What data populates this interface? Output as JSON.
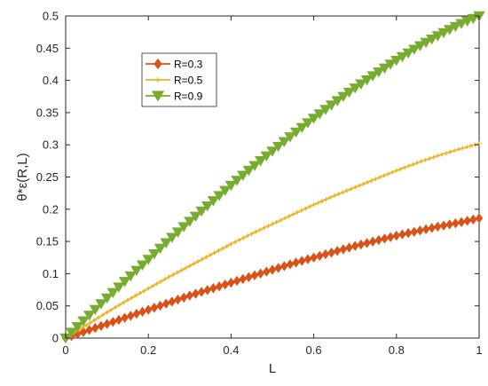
{
  "chart_data": {
    "type": "line",
    "xlabel": "L",
    "ylabel": "θ*ε(R,L)",
    "xlim": [
      0,
      1
    ],
    "ylim": [
      0,
      0.5
    ],
    "xticks": [
      "0",
      "0.2",
      "0.4",
      "0.6",
      "0.8",
      "1"
    ],
    "yticks": [
      "0",
      "0.05",
      "0.1",
      "0.15",
      "0.2",
      "0.25",
      "0.3",
      "0.35",
      "0.4",
      "0.45",
      "0.5"
    ],
    "grid": false,
    "legend_position": "top-left",
    "x": [
      0,
      0.05,
      0.1,
      0.15,
      0.2,
      0.25,
      0.3,
      0.35,
      0.4,
      0.45,
      0.5,
      0.55,
      0.6,
      0.65,
      0.7,
      0.75,
      0.8,
      0.85,
      0.9,
      0.95,
      1.0
    ],
    "series": [
      {
        "name": "R=0.3",
        "color": "#D95319",
        "marker": "diamond",
        "values": [
          0,
          0.011,
          0.022,
          0.033,
          0.044,
          0.055,
          0.066,
          0.076,
          0.086,
          0.096,
          0.106,
          0.116,
          0.125,
          0.134,
          0.143,
          0.151,
          0.159,
          0.166,
          0.173,
          0.179,
          0.186
        ]
      },
      {
        "name": "R=0.5",
        "color": "#EDB120",
        "marker": "plus",
        "values": [
          0,
          0.02,
          0.04,
          0.059,
          0.077,
          0.095,
          0.112,
          0.129,
          0.146,
          0.162,
          0.177,
          0.192,
          0.207,
          0.221,
          0.234,
          0.247,
          0.26,
          0.272,
          0.283,
          0.293,
          0.302
        ]
      },
      {
        "name": "R=0.9",
        "color": "#77AC30",
        "marker": "triangle-down",
        "values": [
          0,
          0.031,
          0.062,
          0.092,
          0.122,
          0.152,
          0.181,
          0.209,
          0.237,
          0.264,
          0.29,
          0.316,
          0.341,
          0.365,
          0.388,
          0.41,
          0.431,
          0.451,
          0.469,
          0.486,
          0.5
        ]
      }
    ]
  }
}
